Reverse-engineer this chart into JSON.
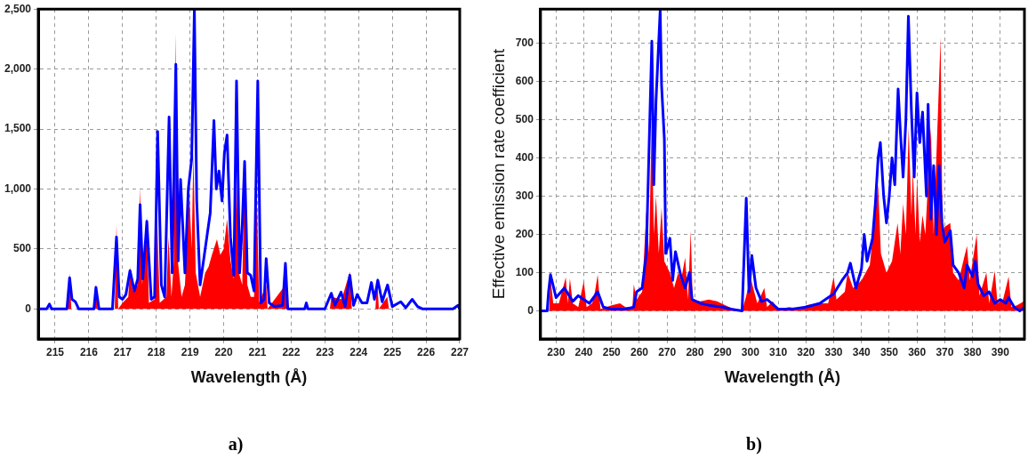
{
  "chart_data": [
    {
      "type": "line",
      "xlabel": "Wavelength (Å)",
      "annotations": [
        "a)"
      ],
      "grid": true,
      "marker": "none",
      "line_style": "solid",
      "xlim": [
        214.5,
        227
      ],
      "xticks": [
        215,
        216,
        217,
        218,
        219,
        220,
        221,
        222,
        223,
        224,
        225,
        226,
        227
      ],
      "ylim": [
        -250,
        2500
      ],
      "yticks": [
        0,
        500,
        {
          "value": 1000,
          "label": "1,000"
        },
        {
          "value": 1500,
          "label": "1,500"
        },
        {
          "value": 2000,
          "label": "2,000"
        },
        {
          "value": 2500,
          "label": "2,500"
        }
      ],
      "series": [
        {
          "type": "area",
          "color": "#ff0000",
          "x": [
            214.5,
            215.38,
            215.43,
            215.48,
            216.16,
            216.21,
            216.26,
            216.77,
            216.82,
            216.87,
            217.0,
            217.17,
            217.22,
            217.3,
            217.45,
            217.52,
            217.58,
            217.72,
            217.78,
            217.95,
            218.02,
            218.1,
            218.3,
            218.36,
            218.45,
            218.52,
            218.58,
            218.64,
            218.75,
            218.85,
            218.98,
            219.05,
            219.1,
            219.17,
            219.3,
            219.45,
            219.55,
            219.65,
            219.8,
            219.9,
            220.0,
            220.1,
            220.2,
            220.3,
            220.38,
            220.45,
            220.55,
            220.62,
            220.7,
            220.8,
            220.9,
            220.98,
            221.05,
            221.26,
            221.3,
            221.83,
            221.9,
            223.15,
            223.19,
            223.5,
            223.74,
            223.8,
            224.5,
            224.55,
            224.6,
            224.85,
            224.9,
            227
          ],
          "values": [
            0,
            0,
            300,
            0,
            0,
            200,
            0,
            0,
            710,
            0,
            50,
            100,
            350,
            150,
            200,
            1010,
            200,
            770,
            50,
            80,
            800,
            50,
            100,
            600,
            100,
            400,
            2300,
            400,
            100,
            200,
            970,
            500,
            1300,
            300,
            100,
            300,
            350,
            450,
            580,
            450,
            500,
            750,
            400,
            250,
            1080,
            300,
            200,
            1260,
            200,
            100,
            100,
            950,
            50,
            200,
            0,
            200,
            0,
            0,
            100,
            80,
            310,
            0,
            0,
            270,
            0,
            100,
            0,
            0
          ]
        },
        {
          "type": "line",
          "color": "#0000ff",
          "x": [
            214.5,
            214.75,
            214.83,
            214.9,
            215.35,
            215.43,
            215.5,
            215.6,
            215.7,
            216.15,
            216.21,
            216.3,
            216.7,
            216.82,
            216.9,
            217.0,
            217.1,
            217.22,
            217.35,
            217.45,
            217.52,
            217.6,
            217.72,
            217.85,
            217.95,
            218.04,
            218.15,
            218.25,
            218.38,
            218.47,
            218.58,
            218.65,
            218.72,
            218.85,
            218.95,
            219.05,
            219.13,
            219.2,
            219.3,
            219.4,
            219.5,
            219.6,
            219.71,
            219.78,
            219.86,
            219.95,
            220.02,
            220.1,
            220.2,
            220.3,
            220.38,
            220.47,
            220.55,
            220.62,
            220.7,
            220.8,
            220.9,
            221.01,
            221.1,
            221.2,
            221.26,
            221.35,
            221.5,
            221.75,
            221.83,
            221.9,
            222.4,
            222.45,
            222.5,
            223.0,
            223.19,
            223.3,
            223.48,
            223.6,
            223.74,
            223.85,
            223.96,
            224.1,
            224.25,
            224.38,
            224.47,
            224.57,
            224.7,
            224.86,
            225.0,
            225.25,
            225.4,
            225.59,
            225.75,
            225.9,
            226.8,
            226.95,
            227
          ],
          "values": [
            0,
            0,
            40,
            0,
            0,
            260,
            80,
            60,
            0,
            0,
            180,
            0,
            0,
            600,
            100,
            80,
            120,
            320,
            150,
            250,
            870,
            250,
            730,
            80,
            100,
            1480,
            200,
            100,
            1600,
            300,
            2040,
            400,
            1080,
            300,
            1000,
            1250,
            2500,
            900,
            200,
            400,
            600,
            800,
            1570,
            1000,
            1150,
            900,
            1300,
            1450,
            600,
            280,
            1900,
            300,
            700,
            1230,
            300,
            280,
            150,
            1900,
            50,
            80,
            420,
            50,
            20,
            30,
            380,
            0,
            0,
            50,
            0,
            0,
            130,
            30,
            140,
            20,
            280,
            30,
            120,
            50,
            50,
            220,
            80,
            240,
            60,
            200,
            20,
            60,
            10,
            80,
            20,
            0,
            0,
            30,
            0
          ]
        }
      ]
    },
    {
      "type": "line",
      "xlabel": "Wavelength (Å)",
      "ylabel": "Effective emission rate coefficient",
      "annotations": [
        "b)"
      ],
      "grid": true,
      "marker": "none",
      "line_style": "solid",
      "xlim": [
        224.4,
        398.7
      ],
      "xticks": [
        230,
        240,
        250,
        260,
        270,
        280,
        290,
        300,
        310,
        320,
        330,
        340,
        350,
        360,
        370,
        380,
        390
      ],
      "ylim": [
        -73,
        789
      ],
      "yticks": [
        0,
        100,
        200,
        300,
        400,
        500,
        600,
        700
      ],
      "series": [
        {
          "type": "area",
          "color": "#ff0000",
          "x": [
            224.4,
            227.5,
            228,
            229,
            231,
            233.5,
            234.2,
            235,
            236,
            238,
            240,
            241,
            243,
            244,
            245,
            246,
            250,
            253,
            255,
            257.5,
            258,
            259,
            261,
            262.5,
            263.5,
            264.5,
            265.2,
            266,
            267,
            268,
            269,
            271,
            272.5,
            274,
            275,
            276.5,
            277.5,
            278.5,
            279.2,
            282,
            285,
            288,
            291,
            294,
            297,
            298.5,
            300,
            301,
            302.5,
            305,
            306,
            308,
            310,
            314,
            318,
            320,
            324,
            328,
            330,
            331,
            334,
            335,
            337,
            340,
            343,
            346,
            347,
            349,
            351,
            353,
            354,
            355,
            356,
            357,
            358,
            358.5,
            359.5,
            360,
            361,
            362,
            363,
            365,
            366,
            368.5,
            369.2,
            370,
            372,
            373,
            375,
            378,
            379,
            381.5,
            382.5,
            385,
            386,
            388,
            389,
            391,
            393,
            394,
            396,
            398.5,
            398.7
          ],
          "values": [
            0,
            0,
            85,
            20,
            20,
            88,
            20,
            85,
            20,
            10,
            78,
            10,
            20,
            50,
            95,
            5,
            15,
            20,
            10,
            10,
            70,
            30,
            50,
            260,
            150,
            520,
            200,
            300,
            150,
            270,
            130,
            100,
            60,
            100,
            80,
            140,
            30,
            210,
            30,
            25,
            30,
            25,
            15,
            5,
            0,
            40,
            90,
            60,
            20,
            60,
            10,
            25,
            5,
            10,
            5,
            15,
            20,
            20,
            90,
            30,
            50,
            100,
            60,
            80,
            120,
            330,
            150,
            100,
            130,
            230,
            150,
            280,
            200,
            480,
            250,
            370,
            200,
            350,
            180,
            250,
            200,
            480,
            200,
            715,
            200,
            220,
            230,
            100,
            80,
            170,
            80,
            200,
            40,
            100,
            20,
            105,
            20,
            30,
            90,
            10,
            15,
            25,
            0
          ]
        },
        {
          "type": "line",
          "color": "#0000ff",
          "x": [
            224.4,
            226.8,
            227.3,
            228,
            230,
            233,
            236,
            238,
            240,
            242,
            245,
            247,
            250,
            255,
            258,
            259,
            261,
            262.5,
            264.5,
            265.2,
            266,
            267.5,
            268,
            269,
            269.5,
            271,
            272,
            273,
            275,
            276.5,
            278,
            279,
            282,
            285,
            290,
            293,
            297,
            298.5,
            299.5,
            300.5,
            302,
            304,
            306,
            310,
            315,
            320,
            325,
            330,
            333,
            335,
            336,
            338,
            340,
            341,
            342,
            344,
            345,
            346,
            346.8,
            348,
            349,
            350,
            351,
            352,
            353.2,
            354,
            355,
            356,
            356.9,
            358,
            359,
            360,
            361,
            362,
            363.4,
            364,
            365,
            366,
            367,
            368,
            369,
            370,
            372,
            373,
            375,
            377,
            378,
            380,
            381,
            382,
            384,
            386,
            388,
            390,
            392,
            393,
            395,
            397,
            398.7
          ],
          "values": [
            0,
            0,
            50,
            95,
            35,
            60,
            25,
            40,
            30,
            20,
            50,
            10,
            5,
            5,
            10,
            50,
            60,
            150,
            705,
            330,
            550,
            785,
            590,
            450,
            150,
            190,
            80,
            155,
            90,
            60,
            100,
            30,
            20,
            15,
            10,
            5,
            0,
            295,
            50,
            145,
            60,
            25,
            30,
            5,
            5,
            10,
            20,
            45,
            80,
            100,
            125,
            60,
            110,
            200,
            130,
            190,
            280,
            400,
            440,
            300,
            230,
            300,
            400,
            330,
            580,
            470,
            350,
            500,
            770,
            520,
            350,
            570,
            440,
            520,
            300,
            540,
            240,
            380,
            200,
            380,
            230,
            180,
            210,
            120,
            100,
            60,
            120,
            90,
            130,
            70,
            40,
            50,
            20,
            30,
            20,
            35,
            10,
            0,
            10
          ]
        }
      ]
    }
  ]
}
